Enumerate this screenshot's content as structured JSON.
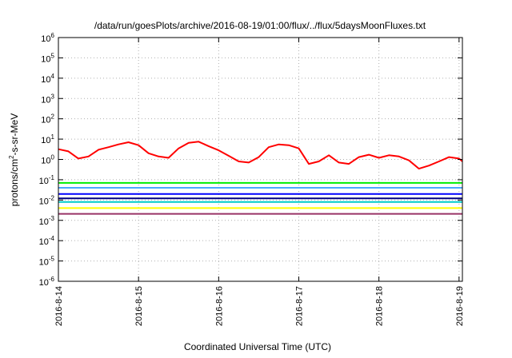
{
  "chart_data": {
    "type": "line",
    "title": "/data/run/goesPlots/archive/2016-08-19/01:00/flux/../flux/5daysMoonFluxes.txt",
    "xlabel": "Coordinated Universal Time (UTC)",
    "ylabel": {
      "prefix": "protons/cm",
      "sup": "2",
      "suffix": "-s-sr-MeV"
    },
    "xscale": "time",
    "yscale": "log",
    "xlim": [
      "2016-08-14 00:00",
      "2016-08-19 01:00"
    ],
    "ylim": [
      1e-06,
      1000000
    ],
    "x_ticks": [
      "2016-8-14",
      "2016-8-15",
      "2016-8-16",
      "2016-8-17",
      "2016-8-18",
      "2016-8-19"
    ],
    "y_ticks": [
      {
        "base": "10",
        "exp": "6"
      },
      {
        "base": "10",
        "exp": "5"
      },
      {
        "base": "10",
        "exp": "4"
      },
      {
        "base": "10",
        "exp": "3"
      },
      {
        "base": "10",
        "exp": "2"
      },
      {
        "base": "10",
        "exp": "1"
      },
      {
        "base": "10",
        "exp": "0"
      },
      {
        "base": "10",
        "exp": "-1"
      },
      {
        "base": "10",
        "exp": "-2"
      },
      {
        "base": "10",
        "exp": "-3"
      },
      {
        "base": "10",
        "exp": "-4"
      },
      {
        "base": "10",
        "exp": "-5"
      },
      {
        "base": "10",
        "exp": "-6"
      }
    ],
    "grid": true,
    "series": [
      {
        "color": "#ff0000",
        "x": [
          "2016-08-14 00:00",
          "2016-08-14 03:00",
          "2016-08-14 06:00",
          "2016-08-14 09:00",
          "2016-08-14 12:00",
          "2016-08-14 15:00",
          "2016-08-14 18:00",
          "2016-08-14 21:00",
          "2016-08-15 00:00",
          "2016-08-15 03:00",
          "2016-08-15 06:00",
          "2016-08-15 09:00",
          "2016-08-15 12:00",
          "2016-08-15 15:00",
          "2016-08-15 18:00",
          "2016-08-15 21:00",
          "2016-08-16 00:00",
          "2016-08-16 03:00",
          "2016-08-16 06:00",
          "2016-08-16 09:00",
          "2016-08-16 12:00",
          "2016-08-16 15:00",
          "2016-08-16 18:00",
          "2016-08-16 21:00",
          "2016-08-17 00:00",
          "2016-08-17 03:00",
          "2016-08-17 06:00",
          "2016-08-17 09:00",
          "2016-08-17 12:00",
          "2016-08-17 15:00",
          "2016-08-17 18:00",
          "2016-08-17 21:00",
          "2016-08-18 00:00",
          "2016-08-18 03:00",
          "2016-08-18 06:00",
          "2016-08-18 09:00",
          "2016-08-18 12:00",
          "2016-08-18 15:00",
          "2016-08-18 18:00",
          "2016-08-18 21:00",
          "2016-08-19 00:00",
          "2016-08-19 01:00"
        ],
        "y": [
          3.2,
          2.5,
          1.1,
          1.4,
          3.0,
          4.0,
          5.5,
          7.0,
          5.0,
          2.0,
          1.4,
          1.2,
          3.5,
          6.5,
          7.5,
          4.5,
          2.8,
          1.5,
          0.8,
          0.7,
          1.3,
          4.0,
          5.5,
          5.0,
          3.5,
          0.6,
          0.8,
          1.6,
          0.7,
          0.6,
          1.3,
          1.7,
          1.2,
          1.6,
          1.4,
          0.9,
          0.35,
          0.5,
          0.8,
          1.3,
          1.1,
          0.8
        ]
      },
      {
        "color": "#00ee00",
        "x": [
          "2016-08-14 00:00",
          "2016-08-19 01:00"
        ],
        "y": [
          0.07,
          0.07
        ]
      },
      {
        "color": "#4aa8ff",
        "x": [
          "2016-08-14 00:00",
          "2016-08-19 01:00"
        ],
        "y": [
          0.04,
          0.04
        ]
      },
      {
        "color": "#0000ff",
        "x": [
          "2016-08-14 00:00",
          "2016-08-19 01:00"
        ],
        "y": [
          0.02,
          0.02
        ]
      },
      {
        "color": "#000080",
        "x": [
          "2016-08-14 00:00",
          "2016-08-19 01:00"
        ],
        "y": [
          0.012,
          0.012
        ]
      },
      {
        "color": "#00cccc",
        "x": [
          "2016-08-14 00:00",
          "2016-08-19 01:00"
        ],
        "y": [
          0.008,
          0.008
        ]
      },
      {
        "color": "#ffff00",
        "x": [
          "2016-08-14 00:00",
          "2016-08-19 01:00"
        ],
        "y": [
          0.004,
          0.004
        ]
      },
      {
        "color": "#993366",
        "x": [
          "2016-08-14 00:00",
          "2016-08-19 01:00"
        ],
        "y": [
          0.0021,
          0.0021
        ]
      }
    ]
  }
}
